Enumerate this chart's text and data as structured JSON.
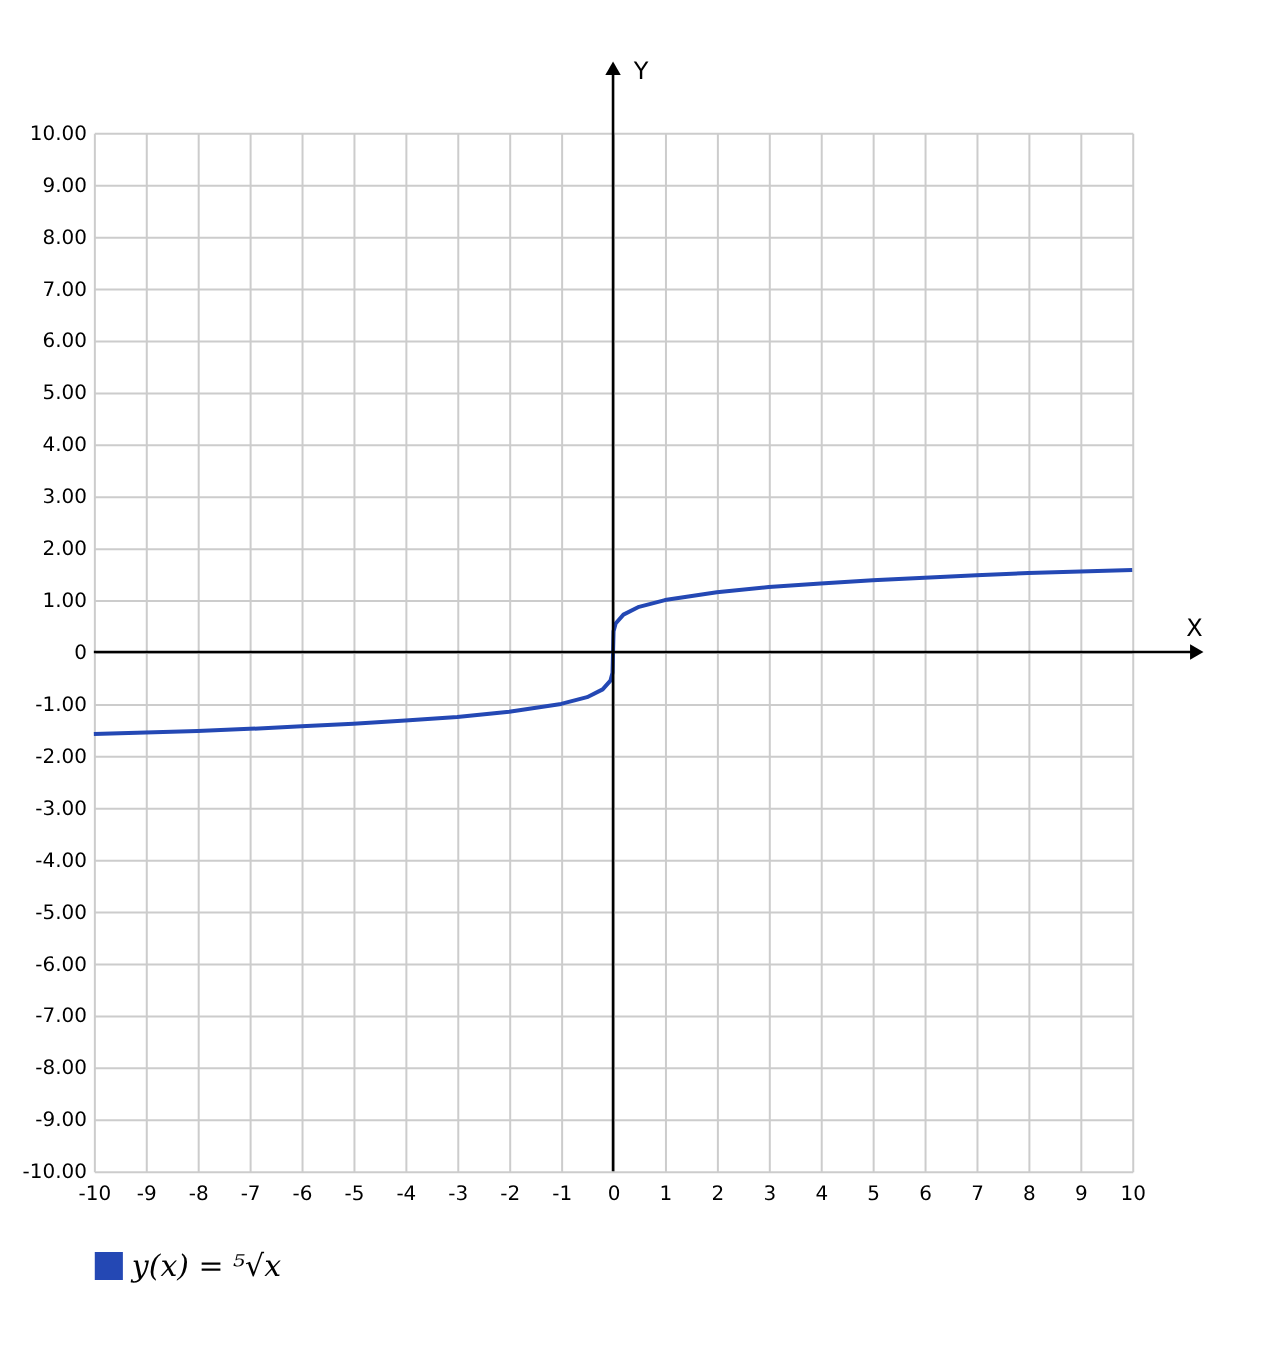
{
  "chart_data": {
    "type": "line",
    "xlabel": "X",
    "ylabel": "Y",
    "x": [
      -10,
      -9,
      -8,
      -7,
      -6,
      -5,
      -4,
      -3,
      -2,
      -1,
      -0.5,
      -0.2,
      -0.05,
      -0.01,
      0,
      0.01,
      0.05,
      0.2,
      0.5,
      1,
      2,
      3,
      4,
      5,
      6,
      7,
      8,
      9,
      10
    ],
    "series": [
      {
        "name": "y(x) = ⁵√x",
        "color": "#2448b4",
        "values": [
          -1.58,
          -1.55,
          -1.52,
          -1.48,
          -1.43,
          -1.38,
          -1.32,
          -1.25,
          -1.15,
          -1.0,
          -0.87,
          -0.72,
          -0.55,
          -0.4,
          0,
          0.4,
          0.55,
          0.72,
          0.87,
          1.0,
          1.15,
          1.25,
          1.32,
          1.38,
          1.43,
          1.48,
          1.52,
          1.55,
          1.58
        ]
      }
    ],
    "xlim": [
      -10,
      10
    ],
    "ylim": [
      -10,
      10
    ],
    "xticks": [
      -10,
      -9,
      -8,
      -7,
      -6,
      -5,
      -4,
      -3,
      -2,
      -1,
      0,
      1,
      2,
      3,
      4,
      5,
      6,
      7,
      8,
      9,
      10
    ],
    "yticks": [
      {
        "value": -10,
        "label": "-10.00"
      },
      {
        "value": -9,
        "label": "-9.00"
      },
      {
        "value": -8,
        "label": "-8.00"
      },
      {
        "value": -7,
        "label": "-7.00"
      },
      {
        "value": -6,
        "label": "-6.00"
      },
      {
        "value": -5,
        "label": "-5.00"
      },
      {
        "value": -4,
        "label": "-4.00"
      },
      {
        "value": -3,
        "label": "-3.00"
      },
      {
        "value": -2,
        "label": "-2.00"
      },
      {
        "value": -1,
        "label": "-1.00"
      },
      {
        "value": 0,
        "label": "0"
      },
      {
        "value": 1,
        "label": "1.00"
      },
      {
        "value": 2,
        "label": "2.00"
      },
      {
        "value": 3,
        "label": "3.00"
      },
      {
        "value": 4,
        "label": "4.00"
      },
      {
        "value": 5,
        "label": "5.00"
      },
      {
        "value": 6,
        "label": "6.00"
      },
      {
        "value": 7,
        "label": "7.00"
      },
      {
        "value": 8,
        "label": "8.00"
      },
      {
        "value": 9,
        "label": "9.00"
      },
      {
        "value": 10,
        "label": "10.00"
      }
    ],
    "grid": true,
    "legend": "bottom left",
    "marker": "none",
    "line_style": "solid"
  }
}
